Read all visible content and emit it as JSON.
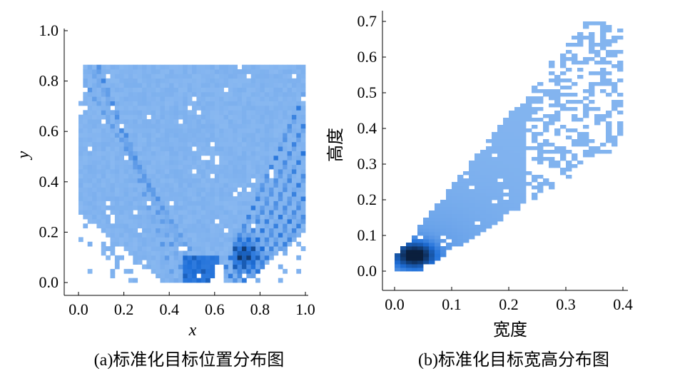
{
  "chart_data": [
    {
      "type": "heatmap",
      "caption": "(a)标准化目标位置分布图",
      "xlabel": "x",
      "ylabel": "y",
      "xlim": [
        0.0,
        1.0
      ],
      "ylim": [
        0.0,
        1.0
      ],
      "x_ticks": [
        "0.0",
        "0.2",
        "0.4",
        "0.6",
        "0.8",
        "1.0"
      ],
      "y_ticks": [
        "0.0",
        "0.2",
        "0.4",
        "0.6",
        "0.8",
        "1.0"
      ],
      "colormap": [
        "#9dc6f5",
        "#1e6fd9",
        "#0a1f3d"
      ],
      "density_regions": [
        {
          "x": [
            0.0,
            1.0
          ],
          "y": [
            0.0,
            0.95
          ],
          "level": 0.15
        },
        {
          "x": [
            0.45,
            0.6
          ],
          "y": [
            0.0,
            0.1
          ],
          "level": 0.55
        },
        {
          "x": [
            0.68,
            0.8
          ],
          "y": [
            0.05,
            0.2
          ],
          "level": 0.95
        },
        {
          "x": [
            0.8,
            1.0
          ],
          "y": [
            0.15,
            0.6
          ],
          "level": 0.55
        }
      ]
    },
    {
      "type": "heatmap",
      "caption": "(b)标准化目标宽高分布图",
      "xlabel": "宽度",
      "ylabel": "高度",
      "xlim": [
        -0.02,
        0.41
      ],
      "ylim": [
        -0.03,
        0.72
      ],
      "x_ticks": [
        "0.0",
        "0.1",
        "0.2",
        "0.3",
        "0.4"
      ],
      "y_ticks": [
        "0.0",
        "0.1",
        "0.2",
        "0.3",
        "0.4",
        "0.5",
        "0.6",
        "0.7"
      ],
      "colormap": [
        "#9dc6f5",
        "#1e6fd9",
        "#0a1f3d"
      ],
      "density_peak": {
        "x": 0.03,
        "y": 0.04
      }
    }
  ]
}
